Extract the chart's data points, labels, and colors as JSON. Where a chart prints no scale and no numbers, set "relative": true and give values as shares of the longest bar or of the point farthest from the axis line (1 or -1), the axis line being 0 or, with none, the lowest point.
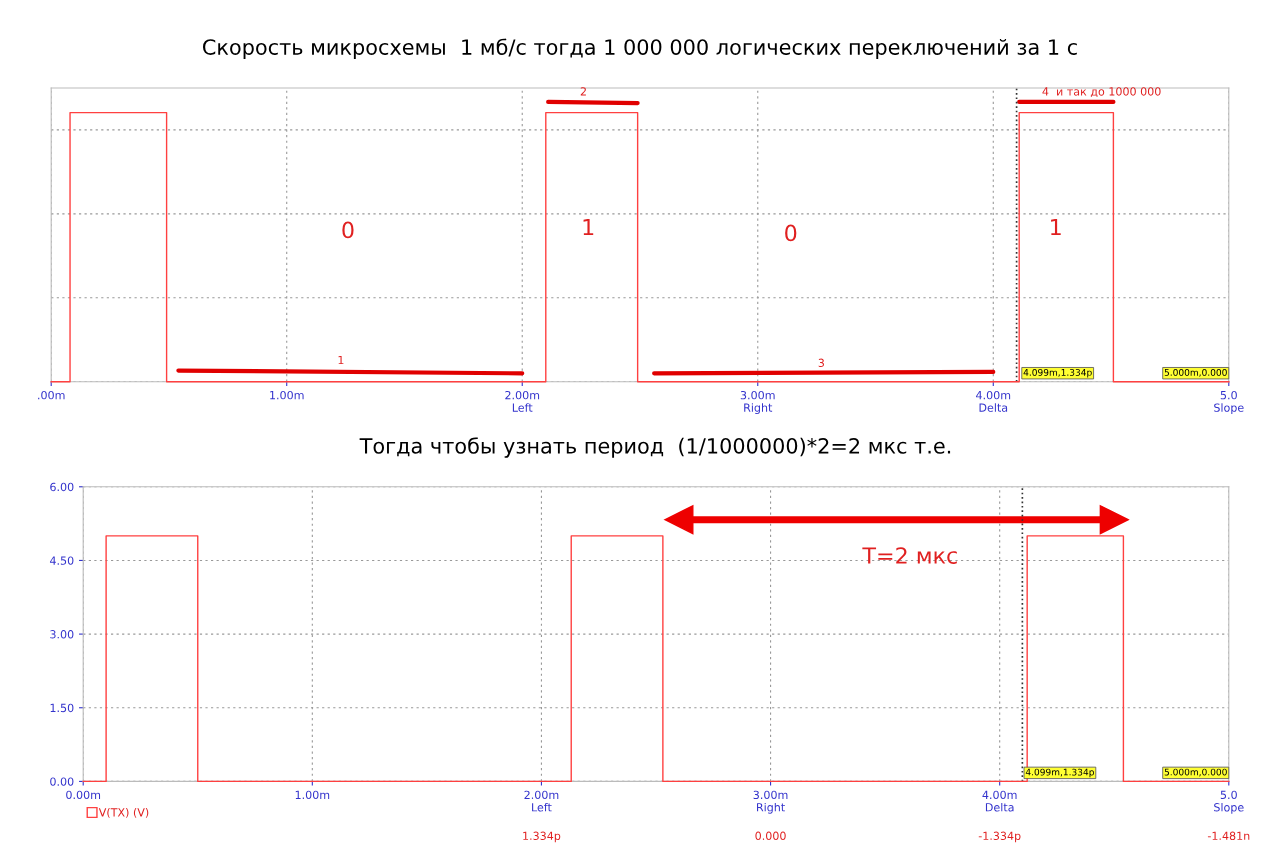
{
  "chart_data": [
    {
      "type": "step",
      "title": "Скорость микросхемы  1 мб/с тогда 1 000 000 логических переключений за 1 с",
      "relative": true,
      "tick_labels": "x",
      "grid": true,
      "xlim": [
        0,
        5.0
      ],
      "xticks": [
        {
          "value": 0,
          "label": ".00m"
        },
        {
          "value": 1,
          "label": "1.00m"
        },
        {
          "value": 2,
          "label": "2.00m\nLeft"
        },
        {
          "value": 3,
          "label": "3.00m\nRight"
        },
        {
          "value": 4,
          "label": "4.00m\nDelta"
        },
        {
          "value": 5,
          "label": "5.0\nSlope"
        }
      ],
      "series": [
        {
          "color": "#ff4040",
          "x": [
            0,
            0.08,
            0.49,
            2.1,
            2.49,
            4.11,
            4.51,
            5.0
          ],
          "values": [
            0,
            0.962,
            0,
            0.962,
            0,
            0.962,
            0,
            0
          ]
        },
        {
          "type": "line",
          "color": "#e00000",
          "x": [
            0.54,
            2.0
          ],
          "values": [
            0.04,
            0.03
          ]
        },
        {
          "type": "line",
          "color": "#e00000",
          "x": [
            2.11,
            2.49
          ],
          "values": [
            1.0,
            0.996
          ]
        },
        {
          "type": "line",
          "color": "#e00000",
          "x": [
            2.56,
            4.0
          ],
          "values": [
            0.03,
            0.035
          ]
        },
        {
          "type": "line",
          "color": "#e00000",
          "x": [
            4.11,
            4.51
          ],
          "values": [
            1.0,
            1.0
          ]
        }
      ],
      "ref_lines": [
        {
          "axis": "x",
          "value": 4.099,
          "color": "#333333",
          "line_style": "dotted"
        }
      ],
      "annotations": [
        "0",
        "1",
        "0",
        "1",
        "4.099m,1.334p",
        "5.000m,0.000",
        {
          "text": "1",
          "x": 1.23,
          "y": 0.04
        },
        {
          "text": "2",
          "x": 2.26,
          "y": 1.0
        },
        {
          "text": "3",
          "x": 3.27,
          "y": 0.03
        },
        {
          "text": "4  и так до 1000 000",
          "x": 4.46,
          "y": 1.0
        }
      ]
    },
    {
      "type": "step",
      "title": "Тогда чтобы узнать период  (1/1000000)*2=2 мкс т.е.",
      "grid": true,
      "legend": "bottom left",
      "xlim": [
        0,
        5.0
      ],
      "xticks": [
        {
          "value": 0,
          "label": "0.00m"
        },
        {
          "value": 1,
          "label": "1.00m"
        },
        {
          "value": 2,
          "label": "2.00m\nLeft"
        },
        {
          "value": 3,
          "label": "3.00m\nRight"
        },
        {
          "value": 4,
          "label": "4.00m\nDelta"
        },
        {
          "value": 5,
          "label": "5.0\nSlope"
        }
      ],
      "ylim": [
        0,
        6
      ],
      "yticks": [
        {
          "value": 0,
          "label": "0.00"
        },
        {
          "value": 1.5,
          "label": "1.50"
        },
        {
          "value": 3,
          "label": "3.00"
        },
        {
          "value": 4.5,
          "label": "4.50"
        },
        {
          "value": 6,
          "label": "6.00"
        }
      ],
      "series": [
        {
          "name": "V(TX) (V)",
          "color": "#ff4040",
          "x": [
            0,
            0.1,
            0.5,
            2.13,
            2.53,
            4.12,
            4.54,
            5.0
          ],
          "values": [
            0,
            5,
            0,
            5,
            0,
            5,
            0,
            0
          ]
        },
        {
          "type": "line",
          "marker": "triangle",
          "color": "#ee0000",
          "x": [
            2.6,
            4.5
          ],
          "values": [
            5.33,
            5.33
          ]
        }
      ],
      "ref_lines": [
        {
          "axis": "x",
          "value": 4.099,
          "color": "#333333",
          "line_style": "dotted"
        }
      ],
      "annotations": [
        "T=2 мкс",
        "4.099m,1.334p",
        "5.000m,0.000",
        "1.334p",
        "0.000",
        "-1.334p",
        "-1.481n"
      ]
    }
  ]
}
